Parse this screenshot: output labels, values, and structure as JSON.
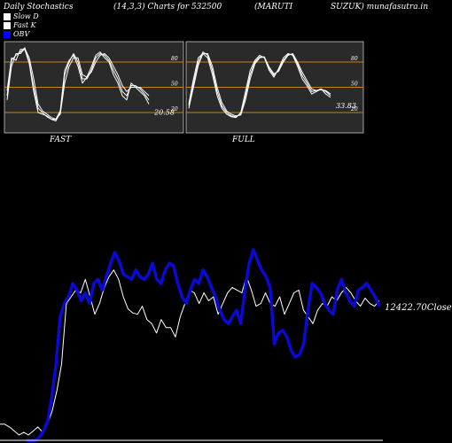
{
  "header": {
    "title": "Daily Stochastics",
    "params": "(14,3,3) Charts for 532500",
    "symbol_a": "(MARUTI",
    "symbol_b": "SUZUK) munafasutra.in"
  },
  "legend": {
    "items": [
      {
        "label": "Slow  D",
        "color": "#ffffff"
      },
      {
        "label": "Fast K",
        "color": "#ffffff"
      },
      {
        "label": "OBV",
        "color": "#0000ff"
      }
    ]
  },
  "colors": {
    "background": "#000000",
    "panel": "#2a2a2a",
    "level_line": "#c8801a",
    "obv": "#0a0ad8",
    "price": "#ffffff"
  },
  "chart_data": [
    {
      "type": "line",
      "name": "fast-stochastic",
      "x_label": "FAST",
      "ylim": [
        0,
        100
      ],
      "levels": [
        20,
        50,
        80
      ],
      "level_labels": [
        "20",
        "50",
        "80"
      ],
      "last_value_label": "20.58",
      "series": [
        {
          "values": [
            46,
            85,
            82,
            95,
            95,
            78,
            45,
            20,
            18,
            16,
            12,
            12,
            22,
            70,
            82,
            88,
            75,
            55,
            62,
            74,
            88,
            92,
            85,
            80,
            65,
            55,
            40,
            35,
            55,
            50,
            45,
            40,
            30
          ]
        },
        {
          "values": [
            40,
            82,
            88,
            92,
            97,
            80,
            50,
            25,
            20,
            15,
            12,
            10,
            20,
            65,
            80,
            90,
            80,
            60,
            60,
            70,
            85,
            90,
            88,
            82,
            70,
            60,
            45,
            40,
            52,
            52,
            48,
            42,
            35
          ]
        },
        {
          "values": [
            35,
            75,
            90,
            90,
            96,
            85,
            60,
            30,
            22,
            18,
            14,
            12,
            18,
            55,
            75,
            85,
            85,
            65,
            62,
            68,
            80,
            88,
            90,
            85,
            75,
            65,
            52,
            45,
            50,
            50,
            50,
            45,
            40
          ]
        }
      ]
    },
    {
      "type": "line",
      "name": "full-stochastic",
      "x_label": "FULL",
      "ylim": [
        0,
        100
      ],
      "levels": [
        20,
        50,
        80
      ],
      "level_labels": [
        "20",
        "50",
        "80"
      ],
      "last_value_label": "33.83",
      "series": [
        {
          "values": [
            30,
            60,
            85,
            90,
            85,
            65,
            40,
            25,
            18,
            15,
            14,
            20,
            45,
            70,
            82,
            88,
            85,
            70,
            62,
            72,
            85,
            90,
            88,
            75,
            60,
            52,
            42,
            45,
            48,
            42,
            38
          ]
        },
        {
          "values": [
            28,
            55,
            80,
            92,
            88,
            70,
            45,
            28,
            20,
            16,
            15,
            18,
            40,
            65,
            80,
            86,
            86,
            72,
            64,
            70,
            82,
            89,
            89,
            78,
            64,
            55,
            45,
            46,
            48,
            45,
            40
          ]
        },
        {
          "values": [
            25,
            50,
            76,
            90,
            90,
            75,
            50,
            32,
            22,
            18,
            16,
            17,
            35,
            60,
            78,
            85,
            86,
            74,
            66,
            69,
            80,
            88,
            90,
            80,
            68,
            58,
            48,
            46,
            47,
            46,
            42
          ]
        }
      ]
    },
    {
      "type": "line",
      "name": "price-obv",
      "close_label": "12422.70Close",
      "series": [
        {
          "name": "OBV",
          "values": [
            -2,
            -2,
            -2,
            0,
            5,
            12,
            30,
            55,
            90,
            100,
            105,
            115,
            110,
            102,
            108,
            100,
            115,
            118,
            110,
            120,
            130,
            138,
            132,
            122,
            120,
            118,
            125,
            120,
            118,
            122,
            130,
            118,
            115,
            125,
            130,
            128,
            115,
            105,
            100,
            110,
            118,
            115,
            125,
            120,
            112,
            105,
            95,
            88,
            85,
            90,
            95,
            85,
            110,
            130,
            140,
            132,
            125,
            120,
            112,
            70,
            78,
            80,
            75,
            65,
            60,
            62,
            70,
            95,
            115,
            112,
            108,
            100,
            95,
            92,
            110,
            118,
            108,
            102,
            98,
            110,
            112,
            115,
            110,
            105,
            98
          ]
        },
        {
          "name": "Close",
          "values": [
            10,
            10,
            8,
            5,
            2,
            4,
            2,
            5,
            8,
            4,
            10,
            20,
            35,
            55,
            100,
            105,
            110,
            108,
            118,
            105,
            92,
            100,
            112,
            120,
            125,
            118,
            105,
            96,
            93,
            92,
            98,
            88,
            85,
            78,
            88,
            82,
            82,
            75,
            90,
            100,
            110,
            108,
            100,
            108,
            102,
            105,
            92,
            100,
            108,
            112,
            110,
            108,
            120,
            110,
            98,
            100,
            108,
            100,
            98,
            105,
            92,
            100,
            108,
            110,
            95,
            90,
            85,
            95,
            100,
            98,
            105,
            102,
            108,
            112,
            108,
            102,
            98,
            104,
            100,
            98,
            102
          ]
        }
      ]
    }
  ]
}
